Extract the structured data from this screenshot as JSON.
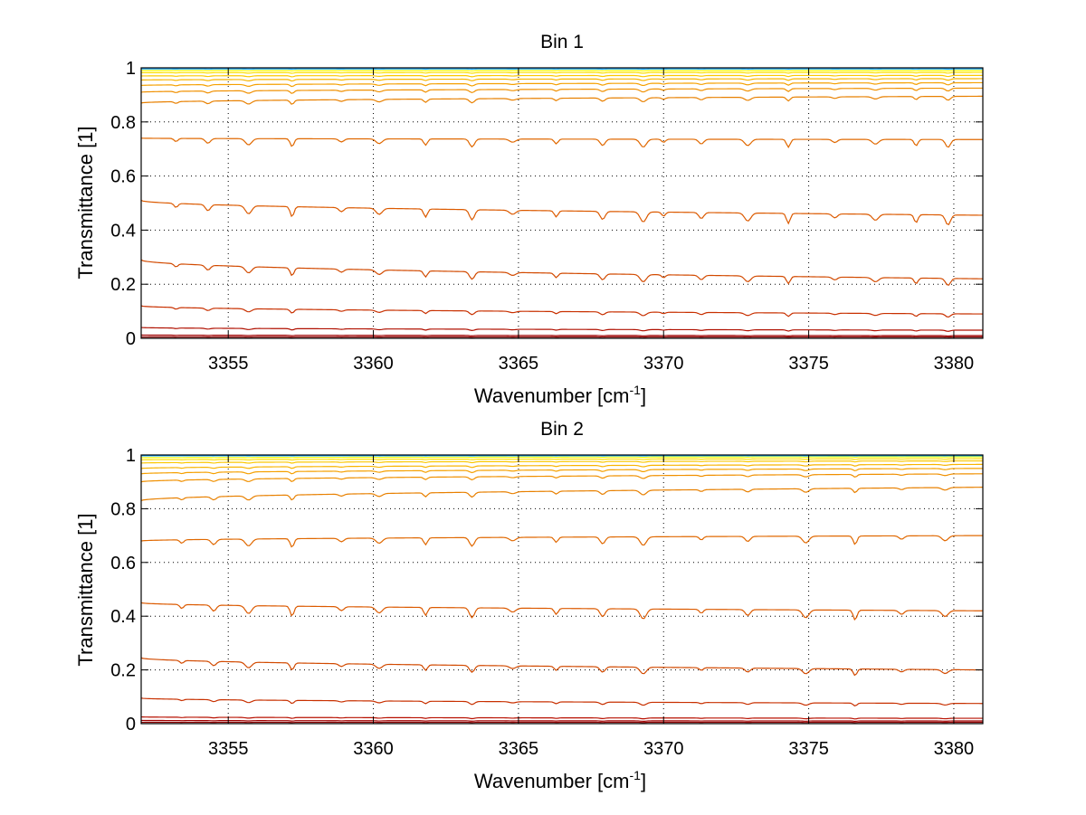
{
  "chart_data": [
    {
      "type": "line",
      "title": "Bin 1",
      "xlabel": "Wavenumber [cm",
      "xlabel_sup": "-1",
      "xlabel_close": "]",
      "ylabel": "Transmittance [1]",
      "xlim": [
        3352,
        3381
      ],
      "ylim": [
        0,
        1
      ],
      "xticks": [
        3355,
        3360,
        3365,
        3370,
        3375,
        3380
      ],
      "yticks": [
        0,
        0.2,
        0.4,
        0.6,
        0.8,
        1
      ],
      "grid": true,
      "legend": "none",
      "line_x": [
        3352,
        3381
      ],
      "dips": [
        3353.2,
        3354.3,
        3355.7,
        3357.2,
        3358.9,
        3360.2,
        3361.8,
        3363.4,
        3364.8,
        3366.3,
        3367.9,
        3369.3,
        3370.0,
        3371.3,
        3372.9,
        3374.3,
        3375.9,
        3377.3,
        3378.7,
        3379.8
      ],
      "series": [
        {
          "start": 0.005,
          "end": 0.005,
          "color": "#8b0000"
        },
        {
          "start": 0.012,
          "end": 0.01,
          "color": "#a00000"
        },
        {
          "start": 0.04,
          "end": 0.03,
          "color": "#b01000"
        },
        {
          "start": 0.12,
          "end": 0.09,
          "color": "#c83000"
        },
        {
          "start": 0.29,
          "end": 0.22,
          "color": "#d24a00"
        },
        {
          "start": 0.51,
          "end": 0.455,
          "color": "#dc5a00"
        },
        {
          "start": 0.74,
          "end": 0.735,
          "color": "#e06800"
        },
        {
          "start": 0.87,
          "end": 0.895,
          "color": "#e88000"
        },
        {
          "start": 0.91,
          "end": 0.925,
          "color": "#f09000"
        },
        {
          "start": 0.935,
          "end": 0.945,
          "color": "#f5a000"
        },
        {
          "start": 0.955,
          "end": 0.96,
          "color": "#f8b400"
        },
        {
          "start": 0.97,
          "end": 0.972,
          "color": "#fbc800"
        },
        {
          "start": 0.982,
          "end": 0.983,
          "color": "#fde000"
        },
        {
          "start": 0.99,
          "end": 0.99,
          "color": "#ffff00"
        },
        {
          "start": 0.996,
          "end": 0.996,
          "color": "#00a0ff"
        }
      ]
    },
    {
      "type": "line",
      "title": "Bin 2",
      "xlabel": "Wavenumber [cm",
      "xlabel_sup": "-1",
      "xlabel_close": "]",
      "ylabel": "Transmittance [1]",
      "xlim": [
        3352,
        3381
      ],
      "ylim": [
        0,
        1
      ],
      "xticks": [
        3355,
        3360,
        3365,
        3370,
        3375,
        3380
      ],
      "yticks": [
        0,
        0.2,
        0.4,
        0.6,
        0.8,
        1
      ],
      "grid": true,
      "legend": "none",
      "line_x": [
        3352,
        3381
      ],
      "dips": [
        3353.4,
        3354.5,
        3355.7,
        3357.2,
        3358.9,
        3360.2,
        3361.8,
        3363.4,
        3364.8,
        3366.3,
        3367.9,
        3369.3,
        3371.3,
        3372.9,
        3374.9,
        3376.6,
        3378.2,
        3379.7
      ],
      "series": [
        {
          "start": 0.005,
          "end": 0.005,
          "color": "#8b0000"
        },
        {
          "start": 0.012,
          "end": 0.01,
          "color": "#a00000"
        },
        {
          "start": 0.025,
          "end": 0.02,
          "color": "#b81000"
        },
        {
          "start": 0.095,
          "end": 0.075,
          "color": "#c83000"
        },
        {
          "start": 0.245,
          "end": 0.2,
          "color": "#d24a00"
        },
        {
          "start": 0.45,
          "end": 0.42,
          "color": "#dc5a00"
        },
        {
          "start": 0.68,
          "end": 0.7,
          "color": "#e06800"
        },
        {
          "start": 0.83,
          "end": 0.88,
          "color": "#e88000"
        },
        {
          "start": 0.9,
          "end": 0.93,
          "color": "#f09000"
        },
        {
          "start": 0.93,
          "end": 0.95,
          "color": "#f5a000"
        },
        {
          "start": 0.95,
          "end": 0.965,
          "color": "#f8b400"
        },
        {
          "start": 0.97,
          "end": 0.978,
          "color": "#fbc800"
        },
        {
          "start": 0.982,
          "end": 0.986,
          "color": "#fde000"
        },
        {
          "start": 0.99,
          "end": 0.993,
          "color": "#ffff00"
        },
        {
          "start": 0.997,
          "end": 0.997,
          "color": "#00a0ff"
        }
      ]
    }
  ]
}
